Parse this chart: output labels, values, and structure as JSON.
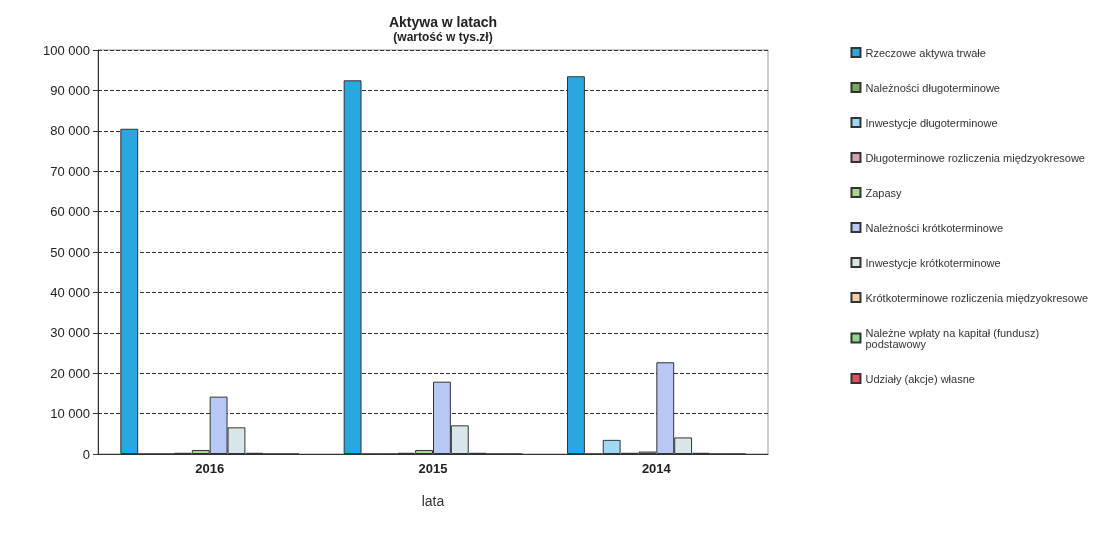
{
  "chart_data": {
    "type": "bar",
    "title": "Aktywa w latach",
    "subtitle": "(wartość w tys.zł)",
    "xlabel": "lata",
    "categories": [
      "2016",
      "2015",
      "2014"
    ],
    "series": [
      {
        "name": "Rzeczowe aktywa trwałe",
        "color": "#29a8e0",
        "values": [
          80500,
          92500,
          93500
        ]
      },
      {
        "name": "Należności długoterminowe",
        "color": "#7aa860",
        "values": [
          0,
          0,
          0
        ]
      },
      {
        "name": "Inwestycje długoterminowe",
        "color": "#9dd9f5",
        "values": [
          0,
          0,
          3500
        ]
      },
      {
        "name": "Długoterminowe rozliczenia międzyokresowe",
        "color": "#d4a0b0",
        "values": [
          300,
          300,
          300
        ]
      },
      {
        "name": "Zapasy",
        "color": "#a8d890",
        "values": [
          1000,
          1000,
          600
        ]
      },
      {
        "name": "Należności krótkoterminowe",
        "color": "#b8c8f5",
        "values": [
          14200,
          17900,
          22700
        ]
      },
      {
        "name": "Inwestycje krótkoterminowe",
        "color": "#d8e6ea",
        "values": [
          6600,
          7100,
          4100
        ]
      },
      {
        "name": "Krótkoterminowe rozliczenia międzyokresowe",
        "color": "#f5d0b0",
        "values": [
          300,
          300,
          300
        ]
      },
      {
        "name": "Należne wpłaty na kapitał (fundusz) podstawowy",
        "color": "#8cd88c",
        "values": [
          0,
          0,
          0
        ]
      },
      {
        "name": "Udziały (akcje) własne",
        "color": "#e05060",
        "values": [
          0,
          0,
          0
        ]
      }
    ],
    "ylim": [
      0,
      100000
    ],
    "yticks": [
      0,
      {
        "value": 10000,
        "label": "10 000"
      },
      {
        "value": 20000,
        "label": "20 000"
      },
      {
        "value": 30000,
        "label": "30 000"
      },
      {
        "value": 40000,
        "label": "40 000"
      },
      {
        "value": 50000,
        "label": "50 000"
      },
      {
        "value": 60000,
        "label": "60 000"
      },
      {
        "value": 70000,
        "label": "70 000"
      },
      {
        "value": 80000,
        "label": "80 000"
      },
      {
        "value": 90000,
        "label": "90 000"
      },
      {
        "value": 100000,
        "label": "100 000"
      }
    ],
    "grid": "y",
    "legend": "right"
  }
}
